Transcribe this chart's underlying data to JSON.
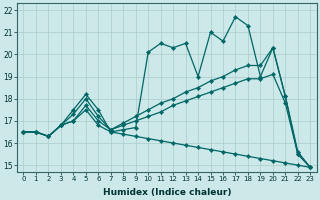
{
  "xlabel": "Humidex (Indice chaleur)",
  "background_color": "#cce8e8",
  "grid_color": "#aacccc",
  "line_color": "#006666",
  "xlim": [
    -0.5,
    23.5
  ],
  "ylim": [
    14.7,
    22.3
  ],
  "yticks": [
    15,
    16,
    17,
    18,
    19,
    20,
    21,
    22
  ],
  "xticks": [
    0,
    1,
    2,
    3,
    4,
    5,
    6,
    7,
    8,
    9,
    10,
    11,
    12,
    13,
    14,
    15,
    16,
    17,
    18,
    19,
    20,
    21,
    22,
    23
  ],
  "series": [
    [
      16.5,
      16.5,
      16.3,
      16.8,
      17.5,
      18.2,
      17.5,
      16.5,
      16.6,
      16.7,
      20.1,
      20.5,
      20.3,
      20.5,
      19.0,
      21.0,
      20.6,
      21.7,
      21.3,
      19.0,
      20.3,
      18.1,
      15.6,
      14.9
    ],
    [
      16.5,
      16.5,
      16.3,
      16.8,
      17.3,
      18.0,
      17.2,
      16.6,
      16.9,
      17.2,
      17.5,
      17.8,
      18.0,
      18.3,
      18.5,
      18.8,
      19.0,
      19.3,
      19.5,
      19.5,
      20.3,
      18.1,
      15.5,
      14.9
    ],
    [
      16.5,
      16.5,
      16.3,
      16.8,
      17.0,
      17.7,
      17.0,
      16.6,
      16.8,
      17.0,
      17.2,
      17.4,
      17.7,
      17.9,
      18.1,
      18.3,
      18.5,
      18.7,
      18.9,
      18.9,
      19.1,
      17.8,
      15.5,
      14.9
    ],
    [
      16.5,
      16.5,
      16.3,
      16.8,
      17.0,
      17.5,
      16.8,
      16.5,
      16.4,
      16.3,
      16.2,
      16.1,
      16.0,
      15.9,
      15.8,
      15.7,
      15.6,
      15.5,
      15.4,
      15.3,
      15.2,
      15.1,
      15.0,
      14.9
    ]
  ]
}
